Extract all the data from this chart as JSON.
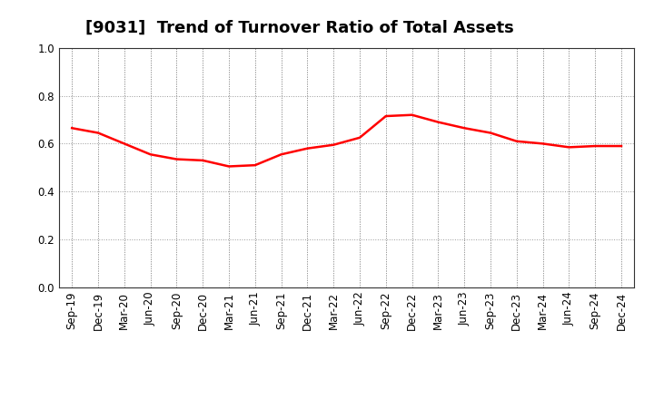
{
  "title": "[9031]  Trend of Turnover Ratio of Total Assets",
  "x_labels": [
    "Sep-19",
    "Dec-19",
    "Mar-20",
    "Jun-20",
    "Sep-20",
    "Dec-20",
    "Mar-21",
    "Jun-21",
    "Sep-21",
    "Dec-21",
    "Mar-22",
    "Jun-22",
    "Sep-22",
    "Dec-22",
    "Mar-23",
    "Jun-23",
    "Sep-23",
    "Dec-23",
    "Mar-24",
    "Jun-24",
    "Sep-24",
    "Dec-24"
  ],
  "y_values": [
    0.665,
    0.645,
    0.6,
    0.555,
    0.535,
    0.53,
    0.505,
    0.51,
    0.555,
    0.58,
    0.595,
    0.625,
    0.715,
    0.72,
    0.69,
    0.665,
    0.645,
    0.61,
    0.6,
    0.585,
    0.59,
    0.59
  ],
  "line_color": "#ff0000",
  "line_width": 1.8,
  "ylim": [
    0.0,
    1.0
  ],
  "yticks": [
    0.0,
    0.2,
    0.4,
    0.6,
    0.8,
    1.0
  ],
  "background_color": "#ffffff",
  "grid_color": "#999999",
  "title_fontsize": 13,
  "tick_fontsize": 8.5
}
